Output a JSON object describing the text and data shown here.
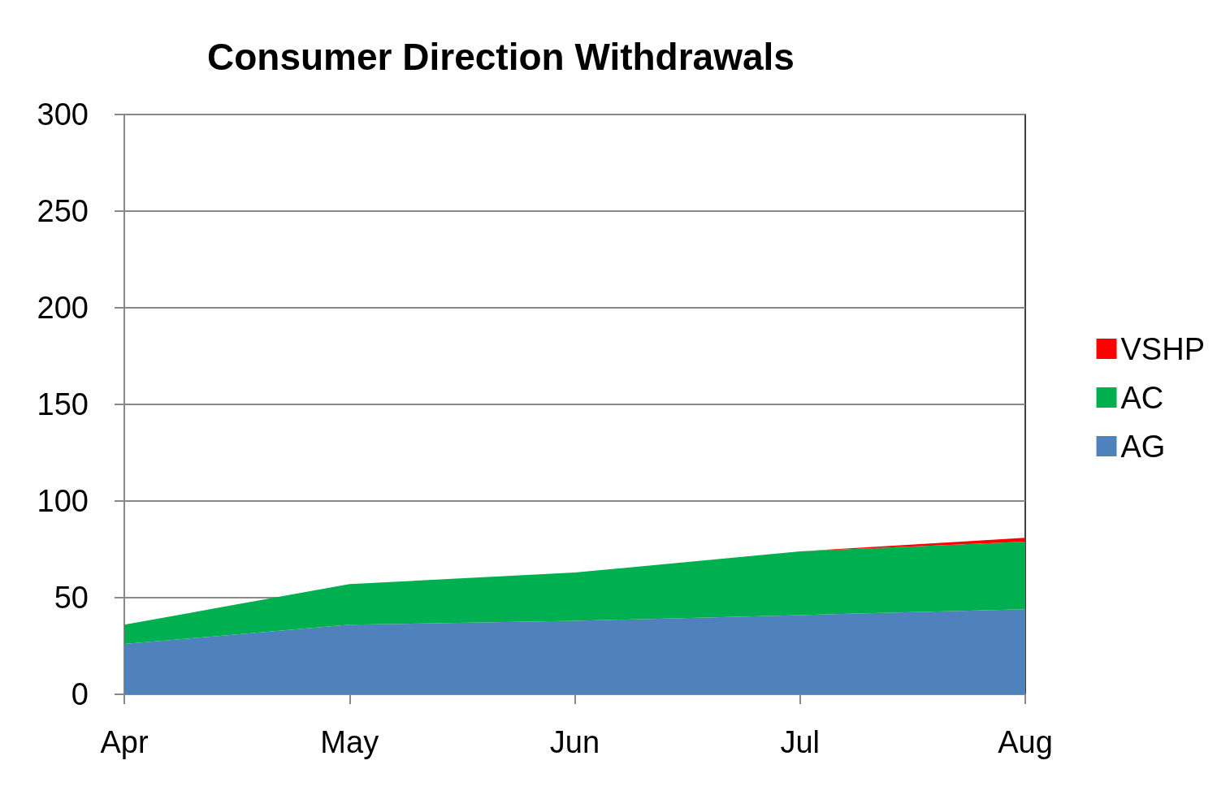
{
  "chart_data": {
    "type": "area",
    "title": "Consumer Direction Withdrawals",
    "categories": [
      "Apr",
      "May",
      "Jun",
      "Jul",
      "Aug"
    ],
    "stacked": true,
    "series": [
      {
        "name": "AG",
        "color": "#4f81bd",
        "values": [
          26,
          36,
          38,
          41,
          44
        ]
      },
      {
        "name": "AC",
        "color": "#00b050",
        "values": [
          10,
          21,
          25,
          33,
          35
        ]
      },
      {
        "name": "VSHP",
        "color": "#ff0000",
        "values": [
          0,
          0,
          0,
          0,
          2
        ]
      }
    ],
    "ylim": [
      0,
      300
    ],
    "yticks": [
      0,
      50,
      100,
      150,
      200,
      250,
      300
    ],
    "grid": "y",
    "legend": "right"
  }
}
